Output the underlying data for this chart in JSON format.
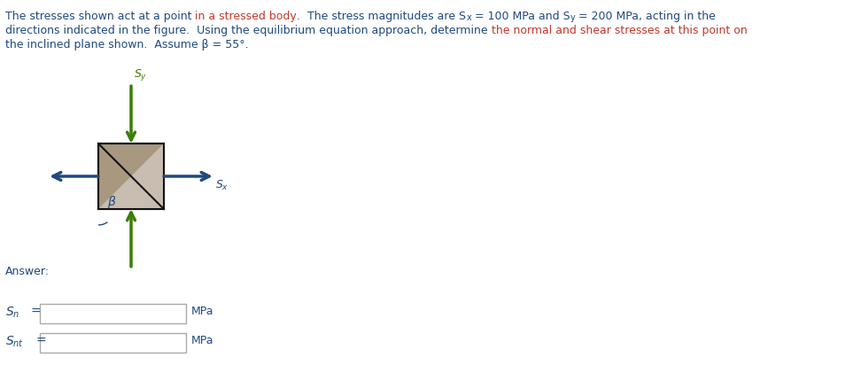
{
  "line1a": "The stresses shown act at a point ",
  "line1b": "in a stressed body",
  "line1c": ".  The stress magnitudes are S",
  "line1d": "x",
  "line1e": " = 100 MPa and S",
  "line1f": "y",
  "line1g": " = 200 MPa, acting in the",
  "line2a": "directions indicated in the figure.  Using the equilibrium equation approach, determine ",
  "line2b": "the normal and shear stresses at this point on",
  "line3": "the inclined plane shown.  Assume β = 55°.",
  "answer": "Answer:",
  "mpa": "MPa",
  "text_color": "#1F497D",
  "red_color": "#C0392B",
  "green_color": "#3A7D00",
  "blue_color": "#1F497D",
  "sq_fill": "#A89880",
  "tri_fill": "#C8BDB0",
  "sq_edge": "#111111",
  "bg": "#FFFFFF",
  "fontsize_body": 9.0,
  "fontsize_label": 9.0
}
